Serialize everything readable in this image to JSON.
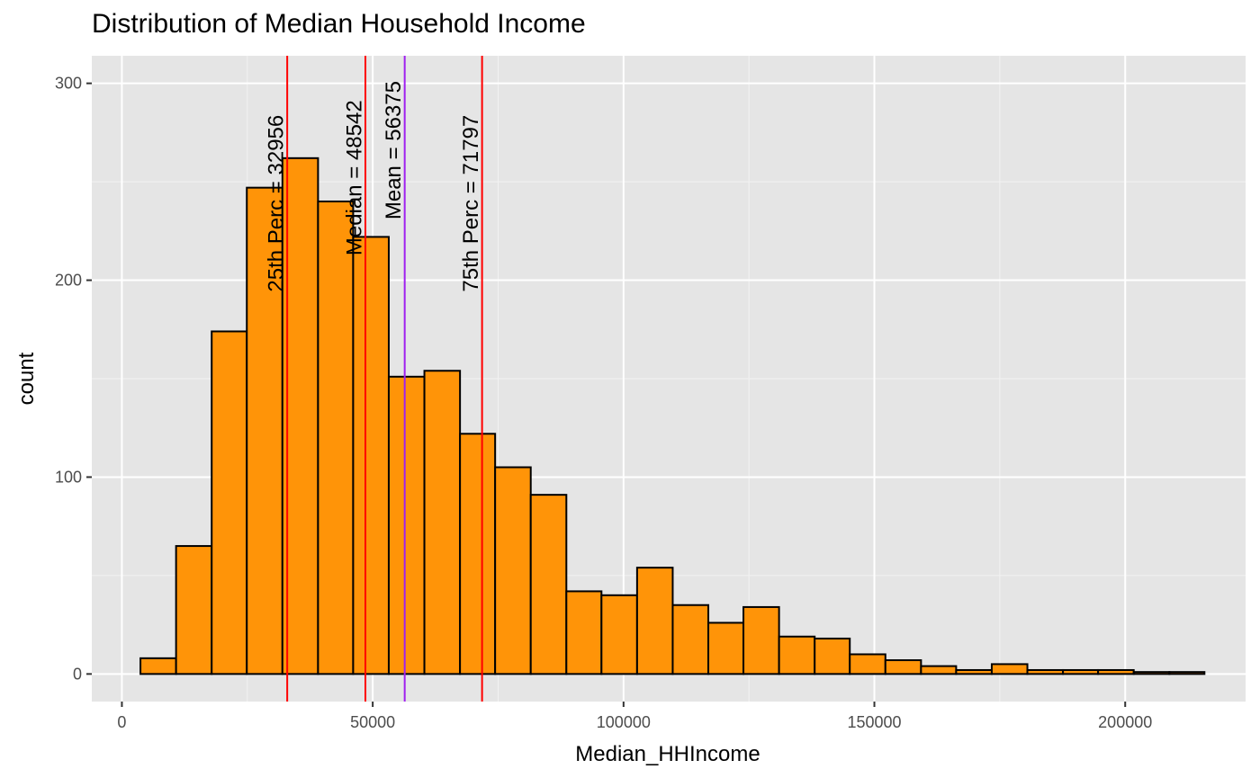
{
  "chart_data": {
    "type": "bar",
    "title": "Distribution of Median Household Income",
    "xlabel": "Median_HHIncome",
    "ylabel": "count",
    "xlim": [
      -6000,
      224000
    ],
    "ylim": [
      -14,
      314
    ],
    "x_ticks": [
      0,
      50000,
      100000,
      150000,
      200000
    ],
    "x_tick_labels": [
      "0",
      "50000",
      "100000",
      "150000",
      "200000"
    ],
    "y_ticks": [
      0,
      100,
      200,
      300
    ],
    "y_tick_labels": [
      "0",
      "100",
      "200",
      "300"
    ],
    "grid": true,
    "fill_color": "#ff9408",
    "bins": [
      {
        "x0": 3700,
        "x1": 10800,
        "count": 8
      },
      {
        "x0": 10800,
        "x1": 17900,
        "count": 65
      },
      {
        "x0": 17900,
        "x1": 24900,
        "count": 174
      },
      {
        "x0": 24900,
        "x1": 32000,
        "count": 247
      },
      {
        "x0": 32000,
        "x1": 39100,
        "count": 262
      },
      {
        "x0": 39100,
        "x1": 46100,
        "count": 240
      },
      {
        "x0": 46100,
        "x1": 53200,
        "count": 222
      },
      {
        "x0": 53200,
        "x1": 60300,
        "count": 151
      },
      {
        "x0": 60300,
        "x1": 67400,
        "count": 154
      },
      {
        "x0": 67400,
        "x1": 74400,
        "count": 122
      },
      {
        "x0": 74400,
        "x1": 81500,
        "count": 105
      },
      {
        "x0": 81500,
        "x1": 88600,
        "count": 91
      },
      {
        "x0": 88600,
        "x1": 95600,
        "count": 42
      },
      {
        "x0": 95600,
        "x1": 102700,
        "count": 40
      },
      {
        "x0": 102700,
        "x1": 109800,
        "count": 54
      },
      {
        "x0": 109800,
        "x1": 116900,
        "count": 35
      },
      {
        "x0": 116900,
        "x1": 123900,
        "count": 26
      },
      {
        "x0": 123900,
        "x1": 131000,
        "count": 34
      },
      {
        "x0": 131000,
        "x1": 138100,
        "count": 19
      },
      {
        "x0": 138100,
        "x1": 145100,
        "count": 18
      },
      {
        "x0": 145100,
        "x1": 152200,
        "count": 10
      },
      {
        "x0": 152200,
        "x1": 159300,
        "count": 7
      },
      {
        "x0": 159300,
        "x1": 166300,
        "count": 4
      },
      {
        "x0": 166300,
        "x1": 173400,
        "count": 2
      },
      {
        "x0": 173400,
        "x1": 180500,
        "count": 5
      },
      {
        "x0": 180500,
        "x1": 187600,
        "count": 2
      },
      {
        "x0": 187600,
        "x1": 194600,
        "count": 2
      },
      {
        "x0": 194600,
        "x1": 201700,
        "count": 2
      },
      {
        "x0": 201700,
        "x1": 208800,
        "count": 1
      },
      {
        "x0": 208800,
        "x1": 215800,
        "count": 1
      }
    ],
    "vlines": [
      {
        "x": 32956,
        "color": "#ff0000",
        "label": "25th Perc =  32956",
        "label_y": 239
      },
      {
        "x": 48542,
        "color": "#ff0000",
        "label": "Median =  48542",
        "label_y": 252
      },
      {
        "x": 56375,
        "color": "#a020f0",
        "label": "Mean =  56375",
        "label_y": 266
      },
      {
        "x": 71797,
        "color": "#ff0000",
        "label": "75th Perc =  71797",
        "label_y": 239
      }
    ]
  }
}
